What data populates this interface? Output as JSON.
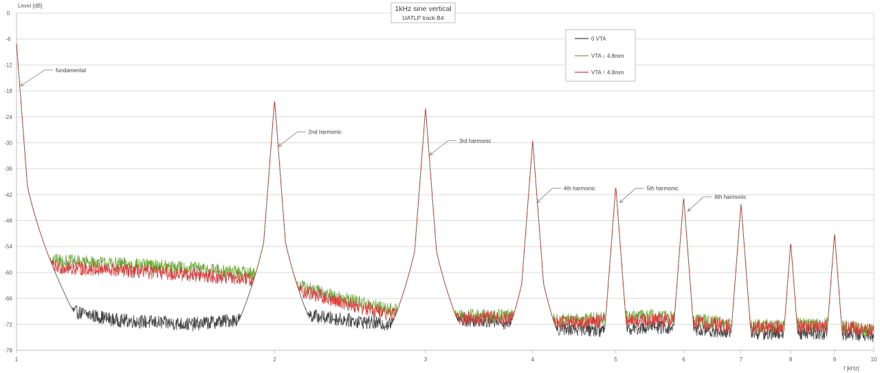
{
  "chart_data": {
    "type": "line",
    "title": "1kHz sine vertical",
    "subtitle": "UATLP track B4",
    "ylabel": "Level [dB]",
    "xlabel": "f [kHz]",
    "x_scale": "log",
    "xlim": [
      1,
      10
    ],
    "ylim": [
      -78,
      0
    ],
    "y_ticks": [
      "0",
      "-6",
      "-12",
      "-18",
      "-24",
      "-30",
      "-36",
      "-42",
      "-48",
      "-54",
      "-60",
      "-66",
      "-72",
      "-78"
    ],
    "x_ticks": [
      "1",
      "2",
      "3",
      "4",
      "5",
      "6",
      "7",
      "8",
      "9",
      "10"
    ],
    "grid": "horizontal",
    "legend_position": "top-right",
    "series": [
      {
        "name": "0 VTA",
        "color": "#404040",
        "peaks": [
          [
            1,
            -7.5
          ],
          [
            2,
            -20.5
          ],
          [
            3,
            -22.5
          ],
          [
            4,
            -30
          ],
          [
            5,
            -40.5
          ],
          [
            6,
            -43
          ],
          [
            7,
            -44.5
          ],
          [
            8,
            -53.5
          ],
          [
            9,
            -51.5
          ]
        ],
        "noise_floor": [
          [
            1.02,
            -55
          ],
          [
            1.05,
            -64
          ],
          [
            1.1,
            -68
          ],
          [
            1.3,
            -71
          ],
          [
            1.6,
            -72
          ],
          [
            1.9,
            -70.5
          ],
          [
            2.05,
            -69
          ],
          [
            2.3,
            -70.5
          ],
          [
            2.7,
            -72
          ],
          [
            3.1,
            -71
          ],
          [
            3.5,
            -71
          ],
          [
            3.9,
            -72
          ],
          [
            4.1,
            -73
          ],
          [
            4.5,
            -73
          ],
          [
            4.95,
            -73.5
          ],
          [
            5.5,
            -72.5
          ],
          [
            5.95,
            -73
          ],
          [
            6.5,
            -73.5
          ],
          [
            7.0,
            -74
          ],
          [
            8.0,
            -74
          ],
          [
            9.0,
            -74
          ],
          [
            10,
            -74.5
          ]
        ]
      },
      {
        "name": "VTA ↓ 4.8mm",
        "color": "#6aaa3a",
        "peaks": [
          [
            1,
            -7.5
          ],
          [
            2,
            -20.5
          ],
          [
            3,
            -22.5
          ],
          [
            4,
            -30
          ],
          [
            5,
            -40.5
          ],
          [
            6,
            -43
          ],
          [
            7,
            -44.5
          ],
          [
            8,
            -53.5
          ],
          [
            9,
            -51.5
          ]
        ],
        "noise_floor": [
          [
            1.02,
            -55
          ],
          [
            1.05,
            -57
          ],
          [
            1.3,
            -58
          ],
          [
            1.6,
            -59
          ],
          [
            1.95,
            -60.5
          ],
          [
            2.05,
            -62
          ],
          [
            2.3,
            -65
          ],
          [
            2.7,
            -68.5
          ],
          [
            3.1,
            -70
          ],
          [
            3.5,
            -70
          ],
          [
            3.9,
            -70
          ],
          [
            4.1,
            -71
          ],
          [
            4.5,
            -71
          ],
          [
            4.95,
            -70.5
          ],
          [
            5.5,
            -70
          ],
          [
            5.95,
            -70.5
          ],
          [
            6.5,
            -71.5
          ],
          [
            7.0,
            -72.5
          ],
          [
            8.0,
            -72
          ],
          [
            9.0,
            -72
          ],
          [
            10,
            -73.5
          ]
        ]
      },
      {
        "name": "VTA ↑ 4.8mm",
        "color": "#d93a3a",
        "peaks": [
          [
            1,
            -7.5
          ],
          [
            2,
            -20.5
          ],
          [
            3,
            -22.5
          ],
          [
            4,
            -30
          ],
          [
            5,
            -40.5
          ],
          [
            6,
            -43
          ],
          [
            7,
            -44.5
          ],
          [
            8,
            -53.5
          ],
          [
            9,
            -51.5
          ]
        ],
        "noise_floor": [
          [
            1.02,
            -56
          ],
          [
            1.05,
            -58.5
          ],
          [
            1.3,
            -59.5
          ],
          [
            1.6,
            -60.5
          ],
          [
            1.95,
            -62
          ],
          [
            2.05,
            -63
          ],
          [
            2.3,
            -66
          ],
          [
            2.7,
            -69.5
          ],
          [
            3.1,
            -70.5
          ],
          [
            3.5,
            -70.5
          ],
          [
            3.9,
            -70.5
          ],
          [
            4.1,
            -71.5
          ],
          [
            4.5,
            -71.5
          ],
          [
            4.95,
            -71
          ],
          [
            5.5,
            -71
          ],
          [
            5.95,
            -71
          ],
          [
            6.5,
            -72
          ],
          [
            7.0,
            -73
          ],
          [
            8.0,
            -72.5
          ],
          [
            9.0,
            -72.5
          ],
          [
            10,
            -73.5
          ]
        ]
      }
    ],
    "annotations": [
      {
        "text": "fundamental",
        "x": 1,
        "y": -17
      },
      {
        "text": "2nd harmonic",
        "x": 2,
        "y": -31
      },
      {
        "text": "3rd harmonic",
        "x": 3,
        "y": -33
      },
      {
        "text": "4th harmonic",
        "x": 4,
        "y": -44
      },
      {
        "text": "5th harmonic",
        "x": 5,
        "y": -44
      },
      {
        "text": "6th harmonic",
        "x": 6,
        "y": -46
      }
    ]
  }
}
